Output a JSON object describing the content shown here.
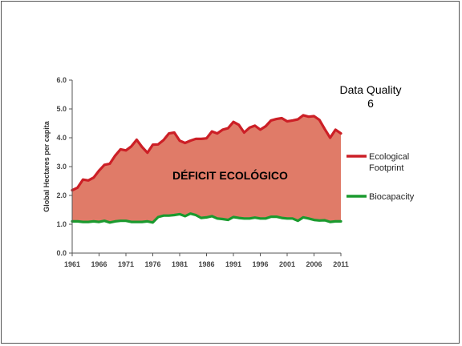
{
  "chart_data": {
    "type": "area",
    "title": "",
    "xlabel": "",
    "ylabel": "Global Hectares per capita",
    "xlim": [
      1961,
      2011
    ],
    "ylim": [
      0,
      6
    ],
    "x_ticks": [
      1961,
      1966,
      1971,
      1976,
      1981,
      1986,
      1991,
      1996,
      2001,
      2006,
      2011
    ],
    "y_ticks": [
      "0.0",
      "1.0",
      "2.0",
      "3.0",
      "4.0",
      "5.0",
      "6.0"
    ],
    "area_label": "DÉFICIT ECOLÓGICO",
    "annotation": {
      "line1": "Data Quality",
      "line2": "6"
    },
    "legend_position": "right",
    "x": [
      1961,
      1962,
      1963,
      1964,
      1965,
      1966,
      1967,
      1968,
      1969,
      1970,
      1971,
      1972,
      1973,
      1974,
      1975,
      1976,
      1977,
      1978,
      1979,
      1980,
      1981,
      1982,
      1983,
      1984,
      1985,
      1986,
      1987,
      1988,
      1989,
      1990,
      1991,
      1992,
      1993,
      1994,
      1995,
      1996,
      1997,
      1998,
      1999,
      2000,
      2001,
      2002,
      2003,
      2004,
      2005,
      2006,
      2007,
      2008,
      2009,
      2010,
      2011
    ],
    "series": [
      {
        "name": "Ecological Footprint",
        "color": "#cc1f26",
        "values": [
          2.18,
          2.27,
          2.55,
          2.52,
          2.62,
          2.86,
          3.06,
          3.1,
          3.38,
          3.6,
          3.56,
          3.7,
          3.93,
          3.68,
          3.48,
          3.76,
          3.77,
          3.92,
          4.15,
          4.18,
          3.9,
          3.82,
          3.9,
          3.96,
          3.96,
          3.98,
          4.22,
          4.15,
          4.28,
          4.33,
          4.55,
          4.45,
          4.18,
          4.35,
          4.42,
          4.28,
          4.4,
          4.6,
          4.65,
          4.68,
          4.57,
          4.6,
          4.64,
          4.78,
          4.73,
          4.75,
          4.62,
          4.3,
          4.0,
          4.28,
          4.15
        ]
      },
      {
        "name": "Biocapacity",
        "color": "#1a9a2e",
        "values": [
          1.1,
          1.1,
          1.08,
          1.08,
          1.1,
          1.08,
          1.12,
          1.06,
          1.1,
          1.12,
          1.12,
          1.08,
          1.08,
          1.08,
          1.1,
          1.06,
          1.25,
          1.3,
          1.3,
          1.32,
          1.35,
          1.28,
          1.37,
          1.32,
          1.22,
          1.24,
          1.28,
          1.2,
          1.18,
          1.15,
          1.25,
          1.22,
          1.2,
          1.2,
          1.23,
          1.2,
          1.2,
          1.26,
          1.26,
          1.22,
          1.2,
          1.2,
          1.12,
          1.24,
          1.2,
          1.15,
          1.13,
          1.14,
          1.08,
          1.1,
          1.1
        ]
      }
    ],
    "fill_color": "#e07b68"
  }
}
